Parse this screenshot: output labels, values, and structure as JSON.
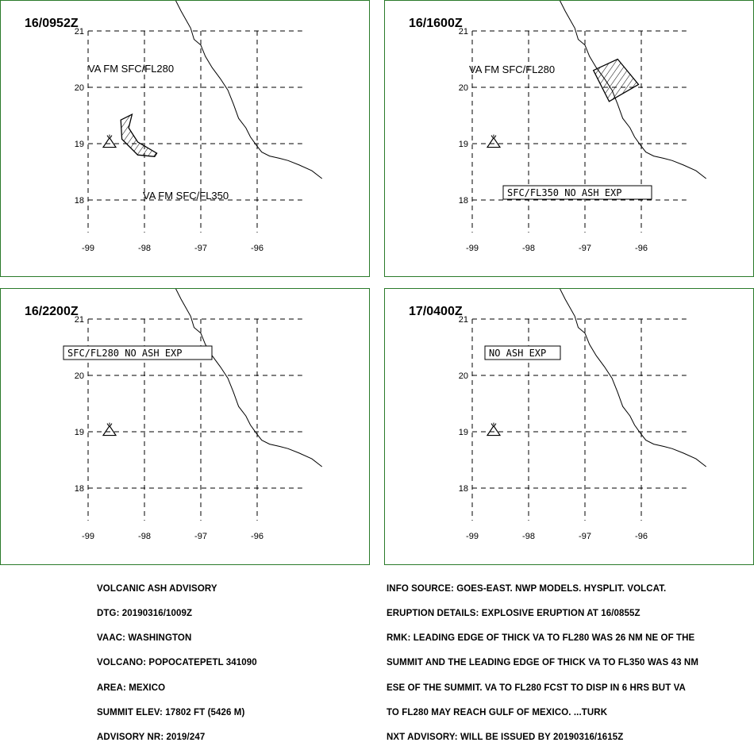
{
  "panels": [
    {
      "time": "16/0952Z",
      "lat_labels": [
        "21",
        "20",
        "19",
        "18"
      ],
      "lon_labels": [
        "-99",
        "-98",
        "-97",
        "-96"
      ],
      "texts": [
        "VA FM SFC/FL280",
        "VA FM SFC/FL350"
      ],
      "boxed": "",
      "polygon": [
        [
          -98.42,
          19.42
        ],
        [
          -98.22,
          19.52
        ],
        [
          -98.28,
          19.28
        ],
        [
          -98.12,
          19.03
        ],
        [
          -97.78,
          18.83
        ],
        [
          -97.82,
          18.77
        ],
        [
          -98.12,
          18.8
        ],
        [
          -98.4,
          19.08
        ]
      ]
    },
    {
      "time": "16/1600Z",
      "lat_labels": [
        "21",
        "20",
        "19",
        "18"
      ],
      "lon_labels": [
        "-99",
        "-98",
        "-97",
        "-96"
      ],
      "texts": [
        "VA FM SFC/FL280"
      ],
      "boxed": "SFC/FL350 NO ASH EXP",
      "polygon": [
        [
          -96.85,
          20.3
        ],
        [
          -96.42,
          20.5
        ],
        [
          -96.05,
          20.05
        ],
        [
          -96.57,
          19.75
        ]
      ]
    },
    {
      "time": "16/2200Z",
      "lat_labels": [
        "21",
        "20",
        "19",
        "18"
      ],
      "lon_labels": [
        "-99",
        "-98",
        "-97",
        "-96"
      ],
      "texts": [],
      "boxed": "SFC/FL280 NO ASH EXP",
      "polygon": []
    },
    {
      "time": "17/0400Z",
      "lat_labels": [
        "21",
        "20",
        "19",
        "18"
      ],
      "lon_labels": [
        "-99",
        "-98",
        "-97",
        "-96"
      ],
      "texts": [],
      "boxed": "NO ASH EXP",
      "polygon": []
    }
  ],
  "volcano": {
    "lon": -98.62,
    "lat": 19.02
  },
  "coastline": [
    [
      -97.45,
      21.55
    ],
    [
      -97.35,
      21.35
    ],
    [
      -97.18,
      21.05
    ],
    [
      -97.12,
      20.85
    ],
    [
      -97.0,
      20.75
    ],
    [
      -96.92,
      20.55
    ],
    [
      -96.8,
      20.35
    ],
    [
      -96.65,
      20.15
    ],
    [
      -96.52,
      19.95
    ],
    [
      -96.42,
      19.7
    ],
    [
      -96.33,
      19.45
    ],
    [
      -96.2,
      19.28
    ],
    [
      -96.12,
      19.12
    ],
    [
      -96.02,
      18.98
    ],
    [
      -95.92,
      18.85
    ],
    [
      -95.78,
      18.78
    ],
    [
      -95.6,
      18.74
    ],
    [
      -95.45,
      18.7
    ],
    [
      -95.25,
      18.62
    ],
    [
      -95.03,
      18.52
    ],
    [
      -94.85,
      18.38
    ]
  ],
  "advisory_left": [
    "VOLCANIC ASH ADVISORY",
    "DTG: 20190316/1009Z",
    "VAAC: WASHINGTON",
    "VOLCANO: POPOCATEPETL 341090",
    "AREA: MEXICO",
    "SUMMIT ELEV: 17802 FT (5426 M)",
    "ADVISORY NR: 2019/247"
  ],
  "advisory_right": [
    "INFO SOURCE: GOES-EAST. NWP MODELS. HYSPLIT. VOLCAT.",
    "ERUPTION DETAILS: EXPLOSIVE ERUPTION AT 16/0855Z",
    "RMK: LEADING EDGE OF THICK VA TO FL280 WAS 26 NM NE OF THE",
    "SUMMIT AND THE LEADING EDGE OF THICK VA TO FL350 WAS 43 NM",
    "ESE OF THE SUMMIT. VA TO FL280 FCST TO DISP IN 6 HRS BUT VA",
    "TO FL280 MAY REACH GULF OF MEXICO. ...TURK",
    "NXT ADVISORY: WILL BE ISSUED BY 20190316/1615Z"
  ]
}
